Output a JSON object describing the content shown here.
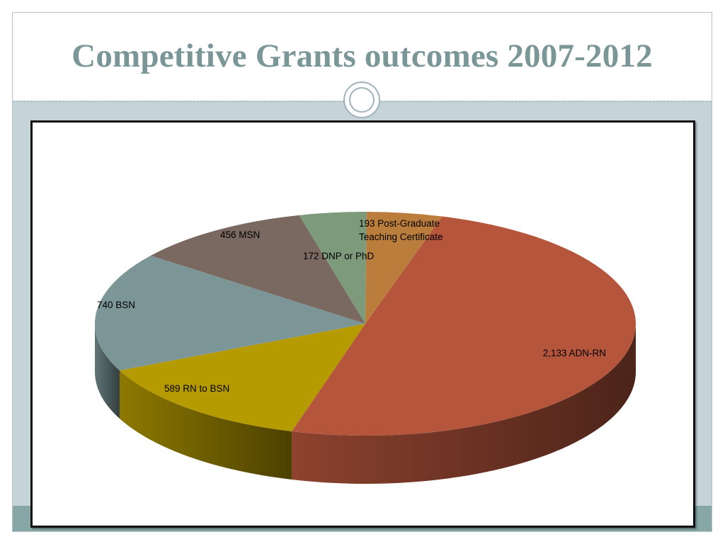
{
  "slide": {
    "title": "Competitive Grants outcomes 2007-2012"
  },
  "chart_data": {
    "type": "pie",
    "is_3d": true,
    "title": "",
    "legend": "none",
    "slices": [
      {
        "label": "2,133 ADN-RN",
        "value": 2133,
        "color": "#b5553b"
      },
      {
        "label": "589 RN to BSN",
        "value": 589,
        "color": "#b59b00"
      },
      {
        "label": "740 BSN",
        "value": 740,
        "color": "#7c9697"
      },
      {
        "label": "456 MSN",
        "value": 456,
        "color": "#7a6960"
      },
      {
        "label": "172 DNP or PhD",
        "value": 172,
        "color": "#7d9a7b"
      },
      {
        "label": "193 Post-Graduate Teaching Certificate",
        "value": 193,
        "color": "#bb7d3c",
        "label_lines": [
          "193 Post-Graduate",
          "Teaching Certificate"
        ]
      }
    ]
  }
}
